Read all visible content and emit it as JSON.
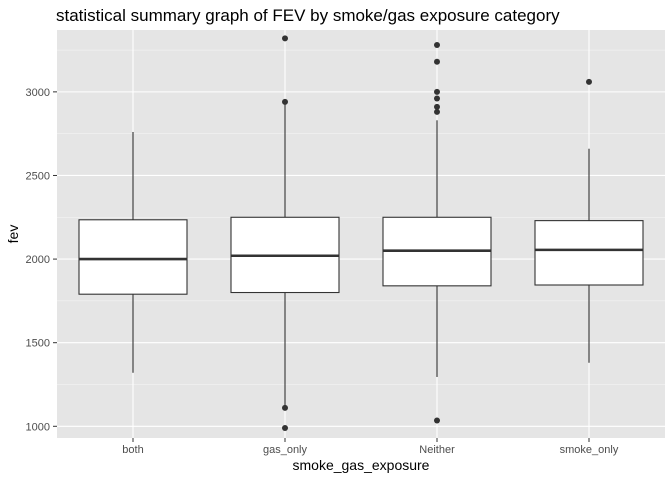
{
  "chart_data": {
    "type": "boxplot",
    "title": "statistical summary graph of FEV by smoke/gas exposure category",
    "xlabel": "smoke_gas_exposure",
    "ylabel": "fev",
    "ylim": [
      930,
      3370
    ],
    "yticks": [
      1000,
      1500,
      2000,
      2500,
      3000
    ],
    "ytick_labels": [
      "1000",
      "1500",
      "2000",
      "2500",
      "3000"
    ],
    "grid": true,
    "colors": {
      "panel_background": "#e5e5e5",
      "grid_major": "#ffffff",
      "box_fill": "#ffffff",
      "box_line": "#333333",
      "outlier": "#333333"
    },
    "categories": [
      "both",
      "gas_only",
      "Neither",
      "smoke_only"
    ],
    "boxes": [
      {
        "category": "both",
        "whisker_low": 1320,
        "q1": 1790,
        "median": 2000,
        "q3": 2235,
        "whisker_high": 2760,
        "outliers": []
      },
      {
        "category": "gas_only",
        "whisker_low": 1125,
        "q1": 1800,
        "median": 2020,
        "q3": 2250,
        "whisker_high": 2930,
        "outliers": [
          990,
          1110,
          2940,
          3320
        ]
      },
      {
        "category": "Neither",
        "whisker_low": 1295,
        "q1": 1840,
        "median": 2050,
        "q3": 2250,
        "whisker_high": 2830,
        "outliers": [
          1035,
          2880,
          2910,
          2960,
          3000,
          3180,
          3280
        ]
      },
      {
        "category": "smoke_only",
        "whisker_low": 1380,
        "q1": 1845,
        "median": 2055,
        "q3": 2230,
        "whisker_high": 2660,
        "outliers": [
          3060
        ]
      }
    ]
  }
}
